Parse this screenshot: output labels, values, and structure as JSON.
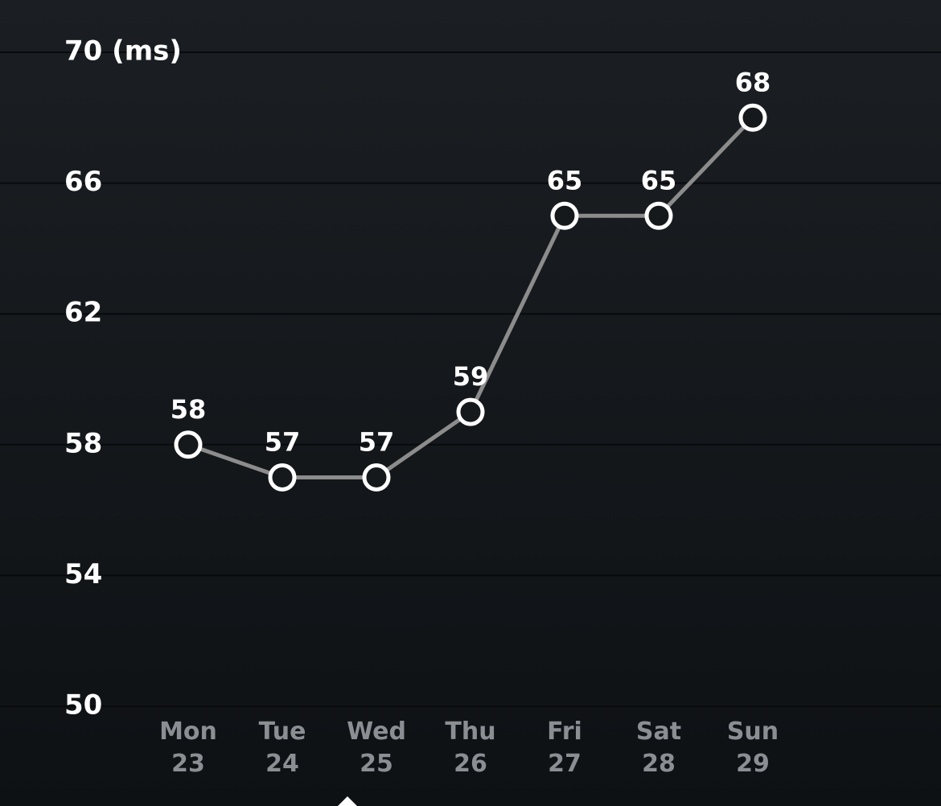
{
  "chart_data": {
    "type": "line",
    "categories": [
      "Mon\n23",
      "Tue\n24",
      "Wed\n25",
      "Thu\n26",
      "Fri\n27",
      "Sat\n28",
      "Sun\n29"
    ],
    "values": [
      58,
      57,
      57,
      59,
      65,
      65,
      68
    ],
    "color": "#8c8c8c",
    "ylim": [
      50,
      70
    ],
    "yticks": [
      50,
      54,
      58,
      62,
      66,
      {
        "value": 70,
        "label": "70 (ms)"
      }
    ],
    "grid": true
  }
}
